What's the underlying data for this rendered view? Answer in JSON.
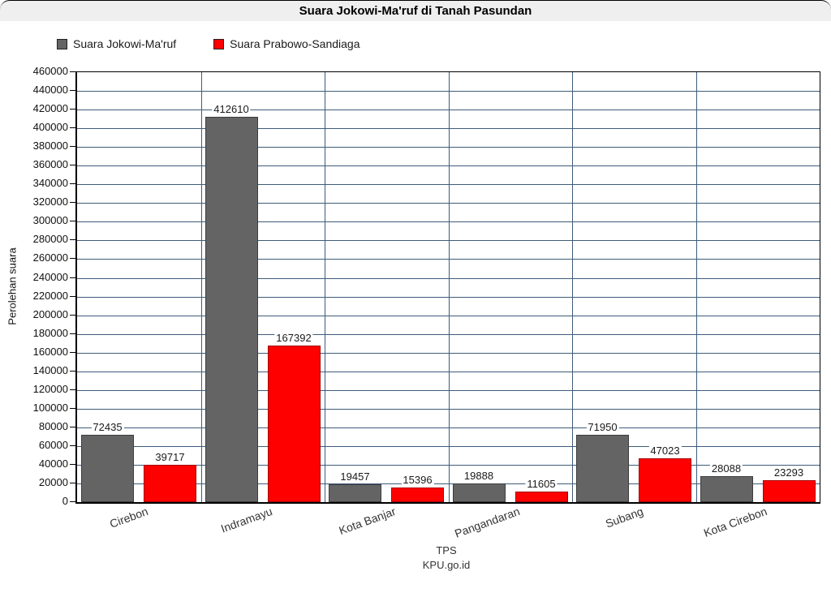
{
  "window": {
    "title": "Suara Jokowi-Ma'ruf di Tanah Pasundan"
  },
  "legend": {
    "items": [
      {
        "label": "Suara Jokowi-Ma'ruf",
        "color": "#646464",
        "border": "#3d3d3d"
      },
      {
        "label": "Suara Prabowo-Sandiaga",
        "color": "#ff0000",
        "border": "#a50000"
      }
    ]
  },
  "chart_data": {
    "type": "bar",
    "title": "Suara Jokowi-Ma'ruf di Tanah Pasundan",
    "categories": [
      "Cirebon",
      "Indramayu",
      "Kota Banjar",
      "Pangandaran",
      "Subang",
      "Kota Cirebon"
    ],
    "series": [
      {
        "name": "Suara Jokowi-Ma'ruf",
        "color": "#646464",
        "border": "#3d3d3d",
        "values": [
          72435,
          412610,
          19457,
          19888,
          71950,
          28088
        ]
      },
      {
        "name": "Suara Prabowo-Sandiaga",
        "color": "#ff0000",
        "border": "#a50000",
        "values": [
          39717,
          167392,
          15396,
          11605,
          47023,
          23293
        ]
      }
    ],
    "xlabel": "TPS",
    "source_label": "KPU.go.id",
    "ylabel": "Perolehan suara",
    "ylim": [
      0,
      460000
    ],
    "ytick_step": 20000,
    "grid": "on",
    "value_labels": "on",
    "legend_position": "top-left",
    "grid_color": "#3e5c7a",
    "axis_color": "#000000"
  }
}
